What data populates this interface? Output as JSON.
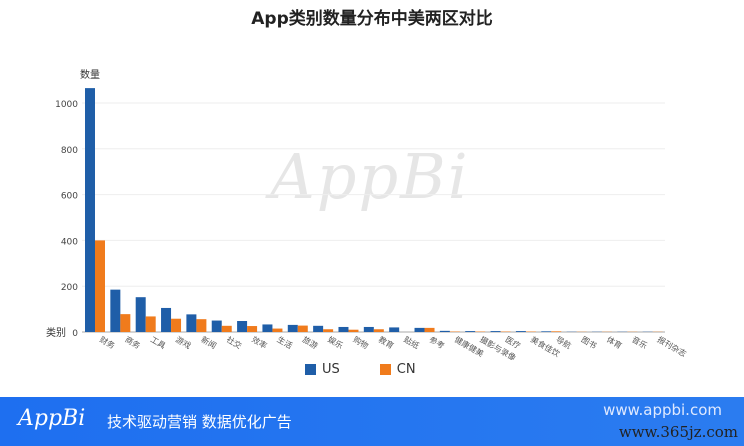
{
  "chart_data": {
    "type": "bar",
    "title": "App类别数量分布中美两区对比",
    "xlabel": "类别",
    "ylabel": "数量",
    "ylim": [
      0,
      1100
    ],
    "yticks": [
      0,
      200,
      400,
      600,
      800,
      1000
    ],
    "grid": true,
    "legend": "bottom",
    "categories": [
      "财务",
      "商务",
      "工具",
      "游戏",
      "新闻",
      "社交",
      "效率",
      "生活",
      "旅游",
      "娱乐",
      "购物",
      "教育",
      "贴纸",
      "参考",
      "健康健美",
      "摄影与录像",
      "医疗",
      "美食佳饮",
      "导航",
      "图书",
      "体育",
      "音乐",
      "报刊杂志"
    ],
    "series": [
      {
        "name": "US",
        "color": "#1f5ea8",
        "values": [
          1065,
          185,
          152,
          105,
          77,
          50,
          48,
          33,
          31,
          27,
          22,
          22,
          20,
          18,
          5,
          4,
          4,
          4,
          3,
          1,
          1,
          1,
          1
        ]
      },
      {
        "name": "CN",
        "color": "#f07b1c",
        "values": [
          400,
          78,
          68,
          58,
          56,
          27,
          26,
          15,
          28,
          12,
          10,
          12,
          0,
          18,
          2,
          2,
          2,
          2,
          3,
          1,
          1,
          1,
          1
        ]
      }
    ]
  },
  "watermark": "AppBi",
  "footer": {
    "logo": "AppBi",
    "slogan": "技术驱动营销 数据优化广告",
    "url": "www.appbi.com",
    "overlay": "www.365jz.com"
  }
}
